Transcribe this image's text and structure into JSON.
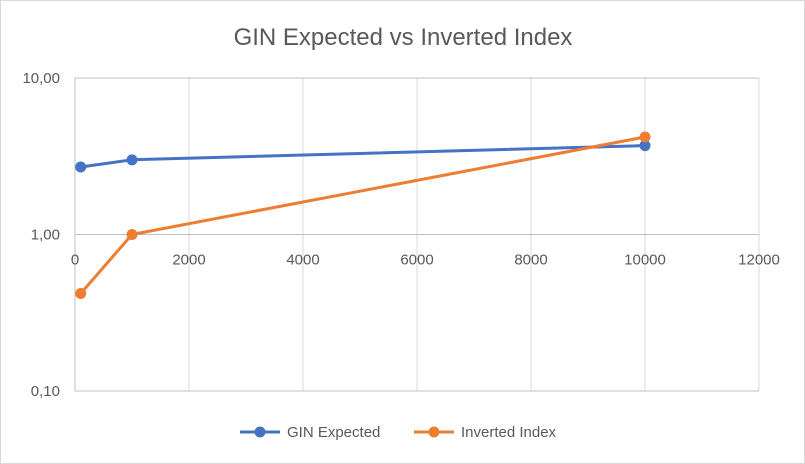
{
  "chart_data": {
    "type": "line",
    "title": "GIN Expected vs Inverted Index",
    "xlabel": "",
    "ylabel": "",
    "x_scale": "linear",
    "y_scale": "log",
    "xlim": [
      0,
      12000
    ],
    "ylim": [
      0.1,
      10
    ],
    "x_ticks": [
      0,
      2000,
      4000,
      6000,
      8000,
      10000,
      12000
    ],
    "x_tick_labels": [
      "0",
      "2000",
      "4000",
      "6000",
      "8000",
      "10000",
      "12000"
    ],
    "y_ticks": [
      0.1,
      1,
      10
    ],
    "y_tick_labels": [
      "0,10",
      "1,00",
      "10,00"
    ],
    "grid": "vertical",
    "legend_position": "bottom",
    "series": [
      {
        "name": "GIN Expected",
        "color": "#4472c4",
        "x": [
          100,
          1000,
          10000
        ],
        "y": [
          2.7,
          3.0,
          3.7
        ]
      },
      {
        "name": "Inverted Index",
        "color": "#ed7d31",
        "x": [
          100,
          1000,
          10000
        ],
        "y": [
          0.42,
          1.0,
          4.2
        ]
      }
    ]
  }
}
